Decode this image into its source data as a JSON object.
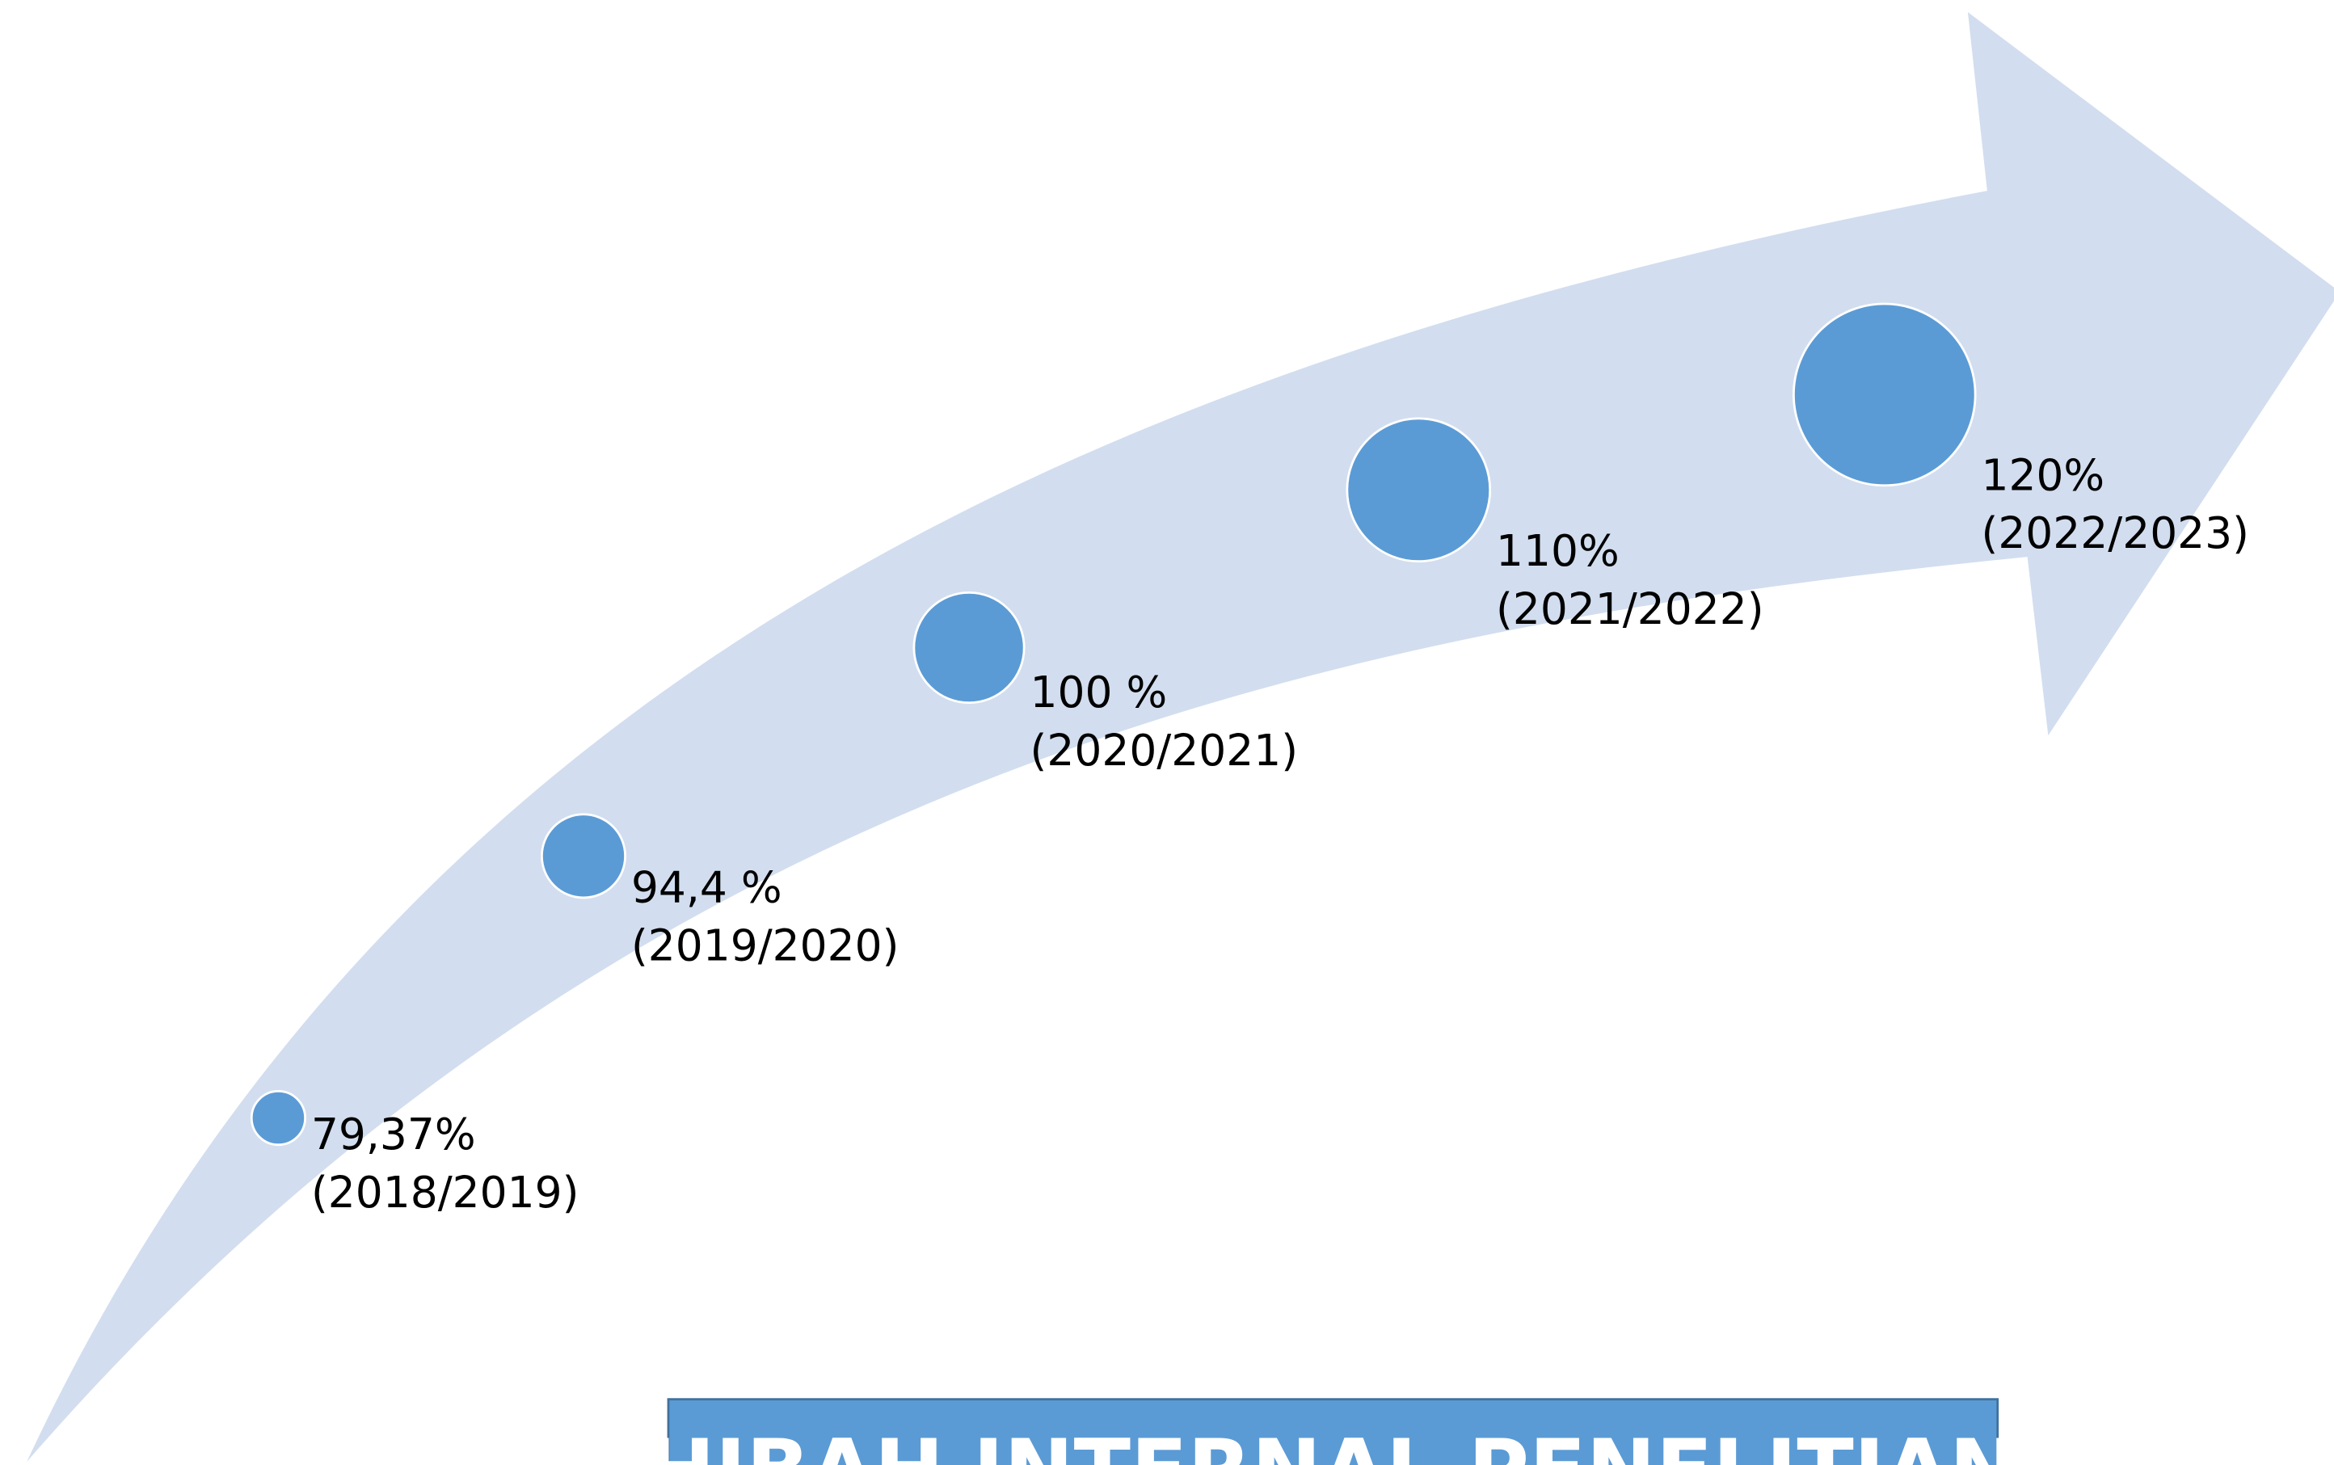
{
  "items": [
    {
      "value": "79,37%",
      "period": "(2018/2019)"
    },
    {
      "value": "94,4 %",
      "period": "(2019/2020)"
    },
    {
      "value": "100 %",
      "period": "(2020/2021)"
    },
    {
      "value": "110%",
      "period": "(2021/2022)"
    },
    {
      "value": "120%",
      "period": "(2022/2023)"
    }
  ],
  "title": "HIBAH INTERNAL PENELITIAN"
}
